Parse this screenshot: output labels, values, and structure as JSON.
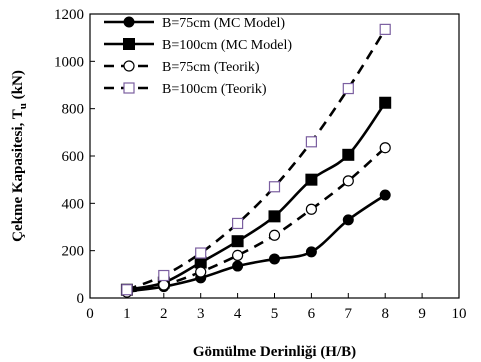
{
  "chart_data": {
    "type": "line",
    "title": "",
    "xlabel": "Gömülme Derinliği (H/B)",
    "ylabel": "Çekme Kapasitesi, T",
    "ylabel_sub": "u",
    "ylabel_unit": " (kN)",
    "xlim": [
      0,
      10
    ],
    "ylim": [
      0,
      1200
    ],
    "xticks": [
      0,
      1,
      2,
      3,
      4,
      5,
      6,
      7,
      8,
      9,
      10
    ],
    "yticks": [
      0,
      200,
      400,
      600,
      800,
      1000,
      1200
    ],
    "grid": false,
    "legend_position": "top-left",
    "x": [
      1,
      2,
      3,
      4,
      5,
      6,
      7,
      8
    ],
    "series": [
      {
        "name": "B=75cm (MC Model)",
        "values": [
          28,
          48,
          85,
          135,
          165,
          195,
          330,
          435
        ],
        "line": "solid",
        "marker": "filled-circle",
        "color": "#000000"
      },
      {
        "name": "B=100cm (MC Model)",
        "values": [
          35,
          65,
          150,
          240,
          345,
          500,
          605,
          825
        ],
        "line": "solid",
        "marker": "filled-square",
        "color": "#000000"
      },
      {
        "name": "B=75cm (Teorik)",
        "values": [
          25,
          55,
          110,
          180,
          265,
          375,
          495,
          635
        ],
        "line": "dashed",
        "marker": "open-circle",
        "color": "#000000"
      },
      {
        "name": "B=100cm (Teorik)",
        "values": [
          35,
          95,
          190,
          315,
          470,
          660,
          885,
          1135
        ],
        "line": "dashed",
        "marker": "open-square",
        "color": "#7b5fa0"
      }
    ]
  }
}
